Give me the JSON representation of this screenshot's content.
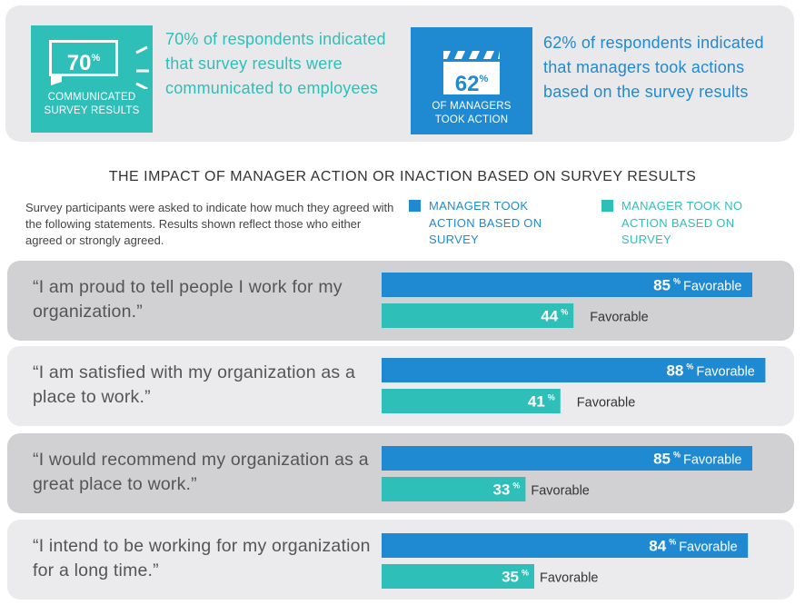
{
  "top": {
    "badge1": {
      "big": "70",
      "pct": "%",
      "line1": "COMMUNICATED",
      "line2": "SURVEY RESULTS"
    },
    "text1": "70% of respondents indicated that survey results were communicated to employees",
    "badge2": {
      "big": "62",
      "pct": "%",
      "line1": "OF MANAGERS",
      "line2": "TOOK ACTION"
    },
    "text2": "62% of respondents indicated that managers took actions based on the survey results"
  },
  "heading": "THE IMPACT OF MANAGER ACTION OR INACTION BASED ON SURVEY RESULTS",
  "description": "Survey participants were asked to indicate how much they agreed with the following statements. Results shown reflect those who either agreed or strongly agreed.",
  "legend": {
    "action": {
      "label": "MANAGER TOOK ACTION BASED ON SURVEY",
      "color": "#1f8ad1"
    },
    "no_action": {
      "label": "MANAGER TOOK NO ACTION BASED ON SURVEY",
      "color": "#2ebfb8"
    }
  },
  "quotes": [
    "“I am proud to tell people I work for my organization.”",
    "“I am satisfied with my organization as a place to work.”",
    "“I would recommend my organization as a great place to work.”",
    "“I intend to be working for my organization for a long time.”"
  ],
  "chart_data": {
    "type": "bar",
    "orientation": "horizontal",
    "title": "THE IMPACT OF MANAGER ACTION OR INACTION BASED ON SURVEY RESULTS",
    "categories": [
      "“I am proud to tell people I work for my organization.”",
      "“I am satisfied with my organization as a place to work.”",
      "“I would recommend my organization as a great place to work.”",
      "“I intend to be working for my organization for a long time.”"
    ],
    "series": [
      {
        "name": "MANAGER TOOK ACTION BASED ON SURVEY",
        "values": [
          85,
          88,
          85,
          84
        ],
        "color": "#1f8ad1"
      },
      {
        "name": "MANAGER TOOK NO ACTION BASED ON SURVEY",
        "values": [
          44,
          41,
          33,
          35
        ],
        "color": "#2ebfb8"
      }
    ],
    "value_suffix": "%",
    "value_label_word": "Favorable",
    "xlim": [
      0,
      100
    ]
  }
}
